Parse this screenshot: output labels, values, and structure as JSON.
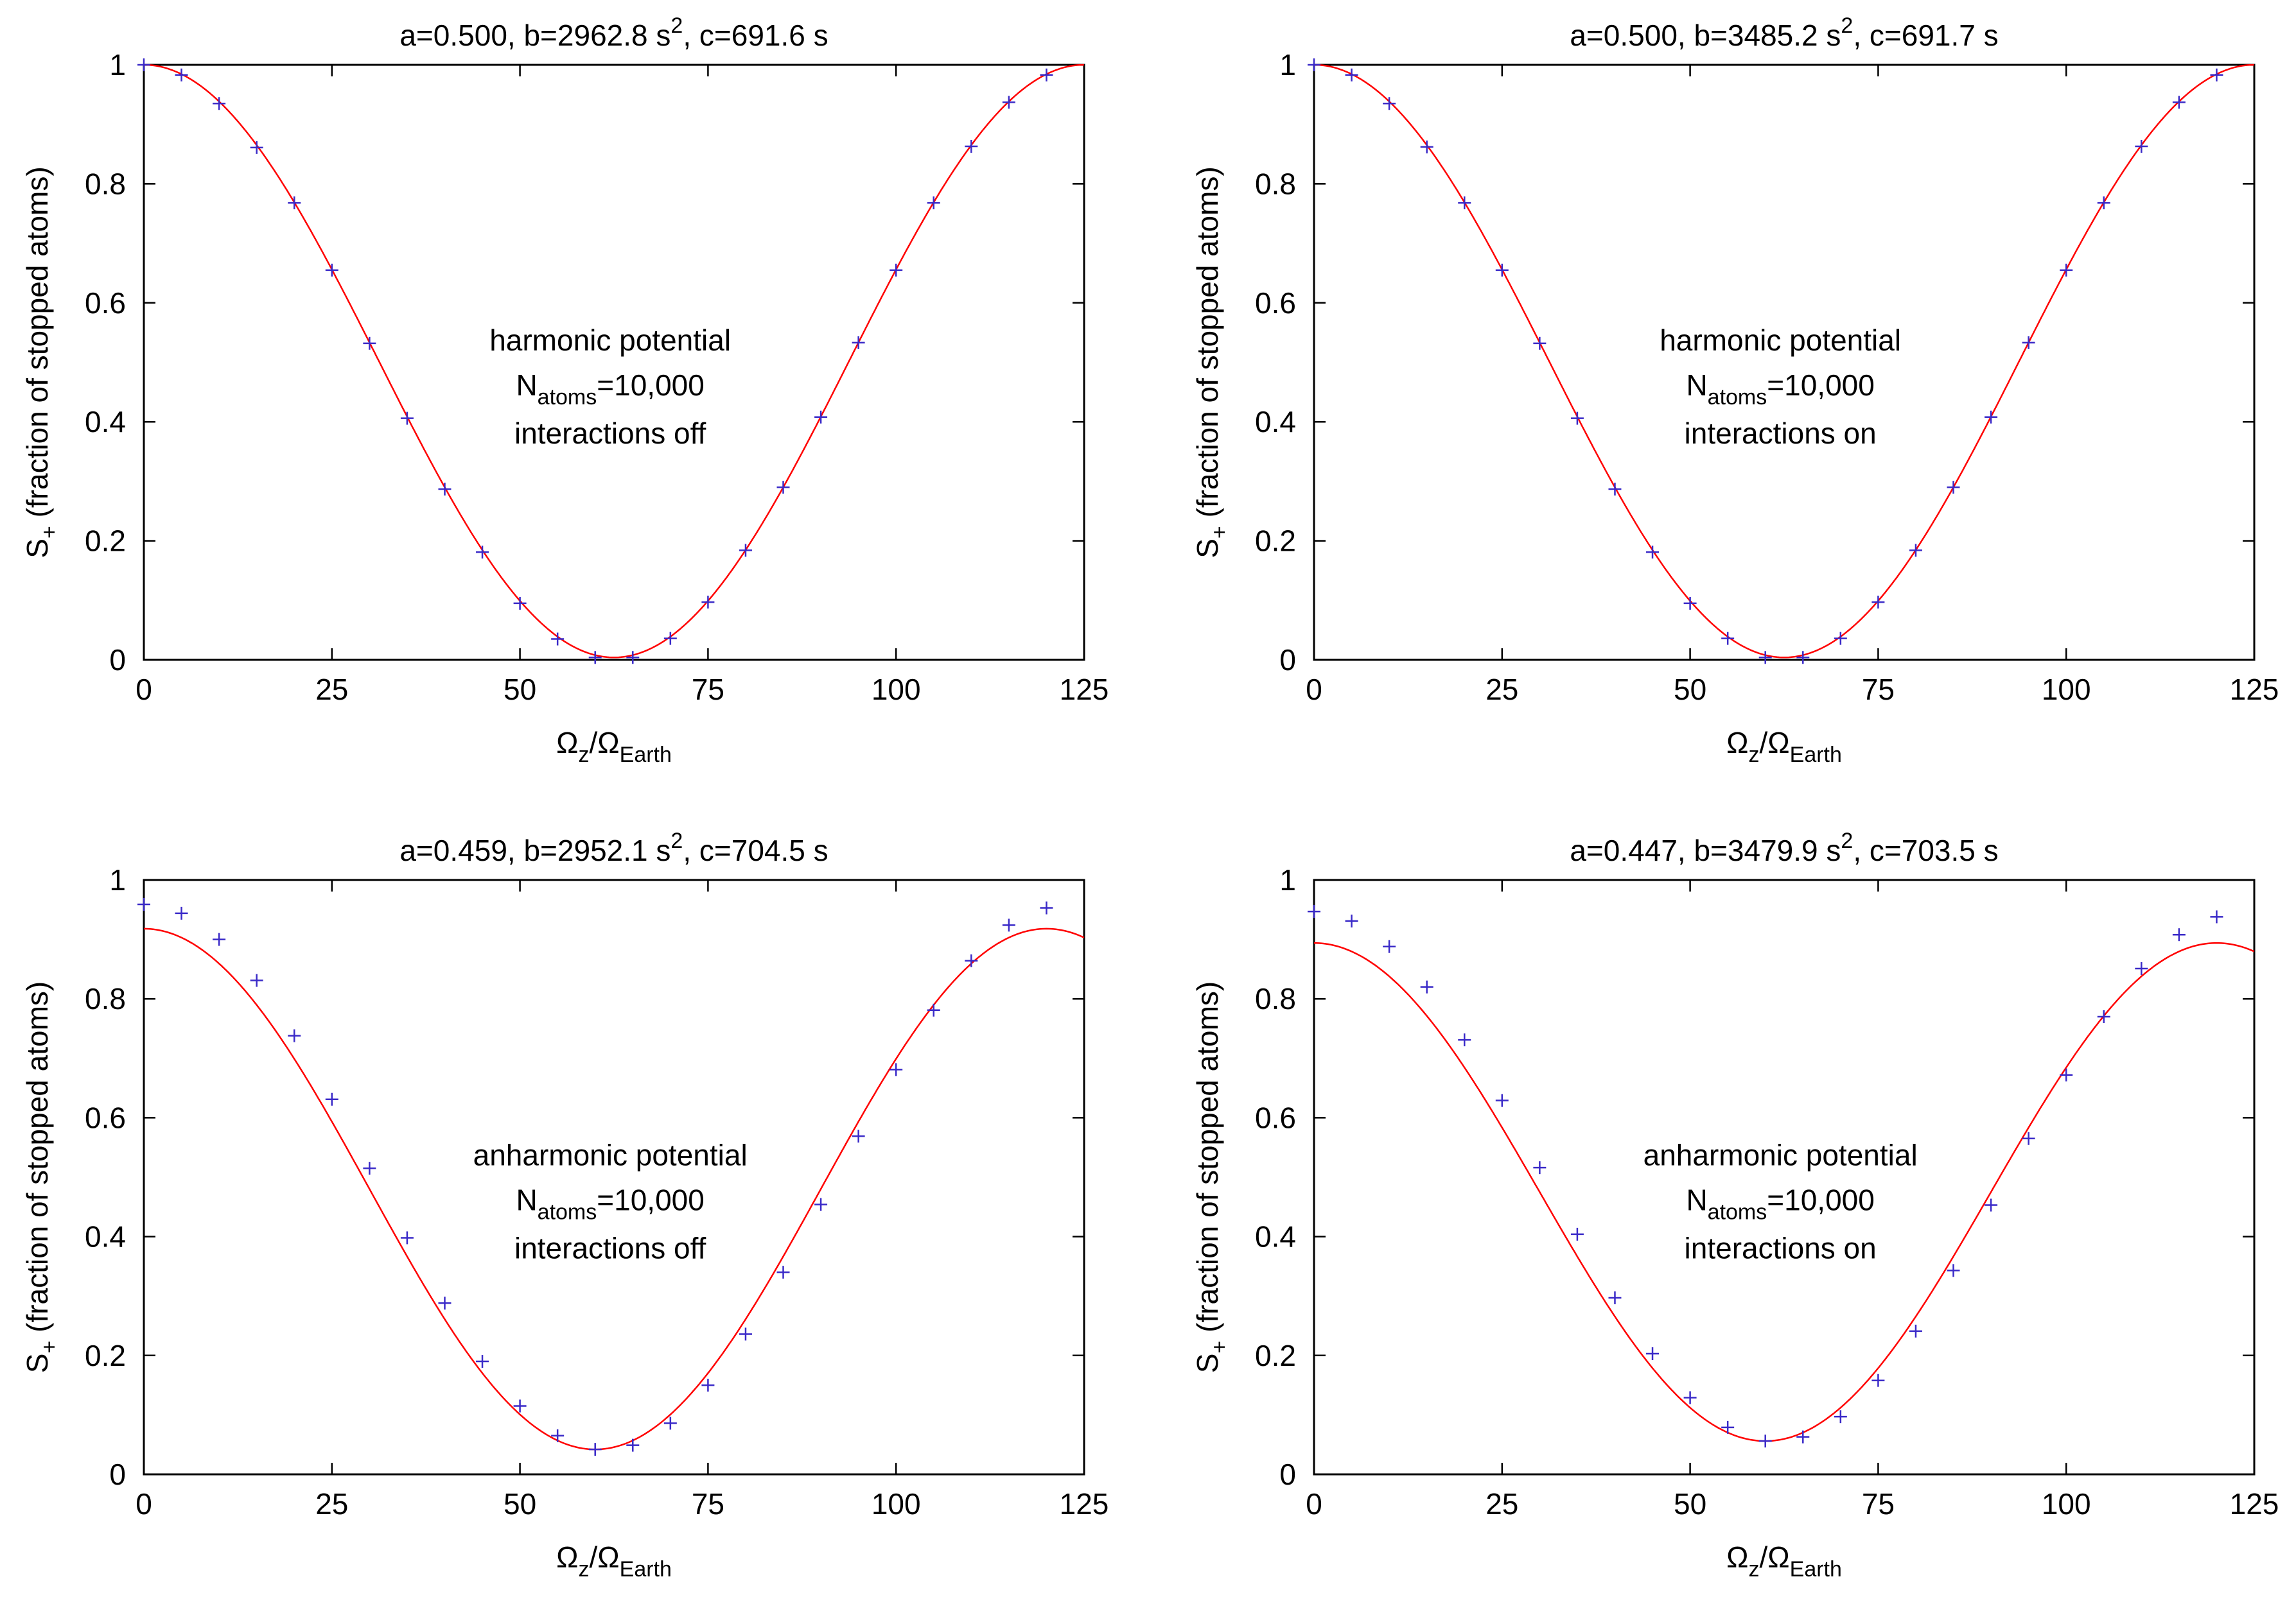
{
  "figure": {
    "shared": {
      "xlabel": {
        "base": "Ω",
        "sub1": "z",
        "slash": "/Ω",
        "sub2": "Earth"
      },
      "ylabel": {
        "base": "S",
        "sub": "+",
        "rest": " (fraction of stopped atoms)"
      },
      "x_ticks": [
        "0",
        "25",
        "50",
        "75",
        "100",
        "125"
      ],
      "y_ticks": [
        "0",
        "0.2",
        "0.4",
        "0.6",
        "0.8",
        "1"
      ],
      "colors": {
        "fit_line": "#ff0000",
        "markers": "#3a2ac8",
        "axes": "#000000"
      }
    }
  },
  "chart_data": [
    {
      "type": "line",
      "title": {
        "pre": "a=0.500, b=2962.8 s",
        "sup": "2",
        "post": ", c=691.6 s"
      },
      "annotation": {
        "line1": "harmonic potential",
        "n_base": "N",
        "n_sub": "atoms",
        "n_rest": "=10,000",
        "line3": "interactions off"
      },
      "xlim": [
        0,
        125
      ],
      "ylim": [
        0,
        1
      ],
      "fit": {
        "a": 0.5,
        "b": 2962.8,
        "c": 691.6
      },
      "x": [
        0,
        5,
        10,
        15,
        20,
        25,
        30,
        35,
        40,
        45,
        50,
        55,
        60,
        65,
        70,
        75,
        80,
        85,
        90,
        95,
        100,
        105,
        110,
        115,
        120
      ],
      "y": [
        1.0,
        0.983,
        0.935,
        0.861,
        0.768,
        0.655,
        0.532,
        0.406,
        0.287,
        0.181,
        0.095,
        0.035,
        0.004,
        0.004,
        0.036,
        0.097,
        0.184,
        0.29,
        0.408,
        0.533,
        0.655,
        0.768,
        0.863,
        0.937,
        0.983
      ]
    },
    {
      "type": "line",
      "title": {
        "pre": "a=0.500, b=3485.2 s",
        "sup": "2",
        "post": ", c=691.7 s"
      },
      "annotation": {
        "line1": "harmonic potential",
        "n_base": "N",
        "n_sub": "atoms",
        "n_rest": "=10,000",
        "line3": "interactions on"
      },
      "xlim": [
        0,
        125
      ],
      "ylim": [
        0,
        1
      ],
      "fit": {
        "a": 0.5,
        "b": 3485.2,
        "c": 691.7
      },
      "x": [
        0,
        5,
        10,
        15,
        20,
        25,
        30,
        35,
        40,
        45,
        50,
        55,
        60,
        65,
        70,
        75,
        80,
        85,
        90,
        95,
        100,
        105,
        110,
        115,
        120
      ],
      "y": [
        1.0,
        0.983,
        0.935,
        0.862,
        0.768,
        0.655,
        0.532,
        0.406,
        0.287,
        0.181,
        0.095,
        0.036,
        0.004,
        0.004,
        0.036,
        0.097,
        0.184,
        0.29,
        0.408,
        0.533,
        0.655,
        0.768,
        0.863,
        0.937,
        0.983
      ]
    },
    {
      "type": "line",
      "title": {
        "pre": "a=0.459, b=2952.1 s",
        "sup": "2",
        "post": ", c=704.5 s"
      },
      "annotation": {
        "line1": "anharmonic potential",
        "n_base": "N",
        "n_sub": "atoms",
        "n_rest": "=10,000",
        "line3": "interactions off"
      },
      "xlim": [
        0,
        125
      ],
      "ylim": [
        0,
        1
      ],
      "fit": {
        "a": 0.459,
        "b": 2952.1,
        "c": 704.5
      },
      "x": [
        0,
        5,
        10,
        15,
        20,
        25,
        30,
        35,
        40,
        45,
        50,
        55,
        60,
        65,
        70,
        75,
        80,
        85,
        90,
        95,
        100,
        105,
        110,
        115,
        120
      ],
      "y": [
        0.959,
        0.944,
        0.9,
        0.831,
        0.738,
        0.631,
        0.515,
        0.398,
        0.288,
        0.19,
        0.115,
        0.065,
        0.042,
        0.049,
        0.086,
        0.15,
        0.236,
        0.34,
        0.454,
        0.569,
        0.681,
        0.781,
        0.864,
        0.924,
        0.953
      ]
    },
    {
      "type": "line",
      "title": {
        "pre": "a=0.447, b=3479.9 s",
        "sup": "2",
        "post": ", c=703.5 s"
      },
      "annotation": {
        "line1": "anharmonic potential",
        "n_base": "N",
        "n_sub": "atoms",
        "n_rest": "=10,000",
        "line3": "interactions on"
      },
      "xlim": [
        0,
        125
      ],
      "ylim": [
        0,
        1
      ],
      "fit": {
        "a": 0.447,
        "b": 3479.9,
        "c": 703.5
      },
      "x": [
        0,
        5,
        10,
        15,
        20,
        25,
        30,
        35,
        40,
        45,
        50,
        55,
        60,
        65,
        70,
        75,
        80,
        85,
        90,
        95,
        100,
        105,
        110,
        115,
        120
      ],
      "y": [
        0.947,
        0.931,
        0.888,
        0.82,
        0.731,
        0.629,
        0.516,
        0.404,
        0.297,
        0.203,
        0.129,
        0.079,
        0.056,
        0.063,
        0.097,
        0.158,
        0.241,
        0.343,
        0.453,
        0.565,
        0.672,
        0.77,
        0.851,
        0.908,
        0.938
      ]
    }
  ]
}
